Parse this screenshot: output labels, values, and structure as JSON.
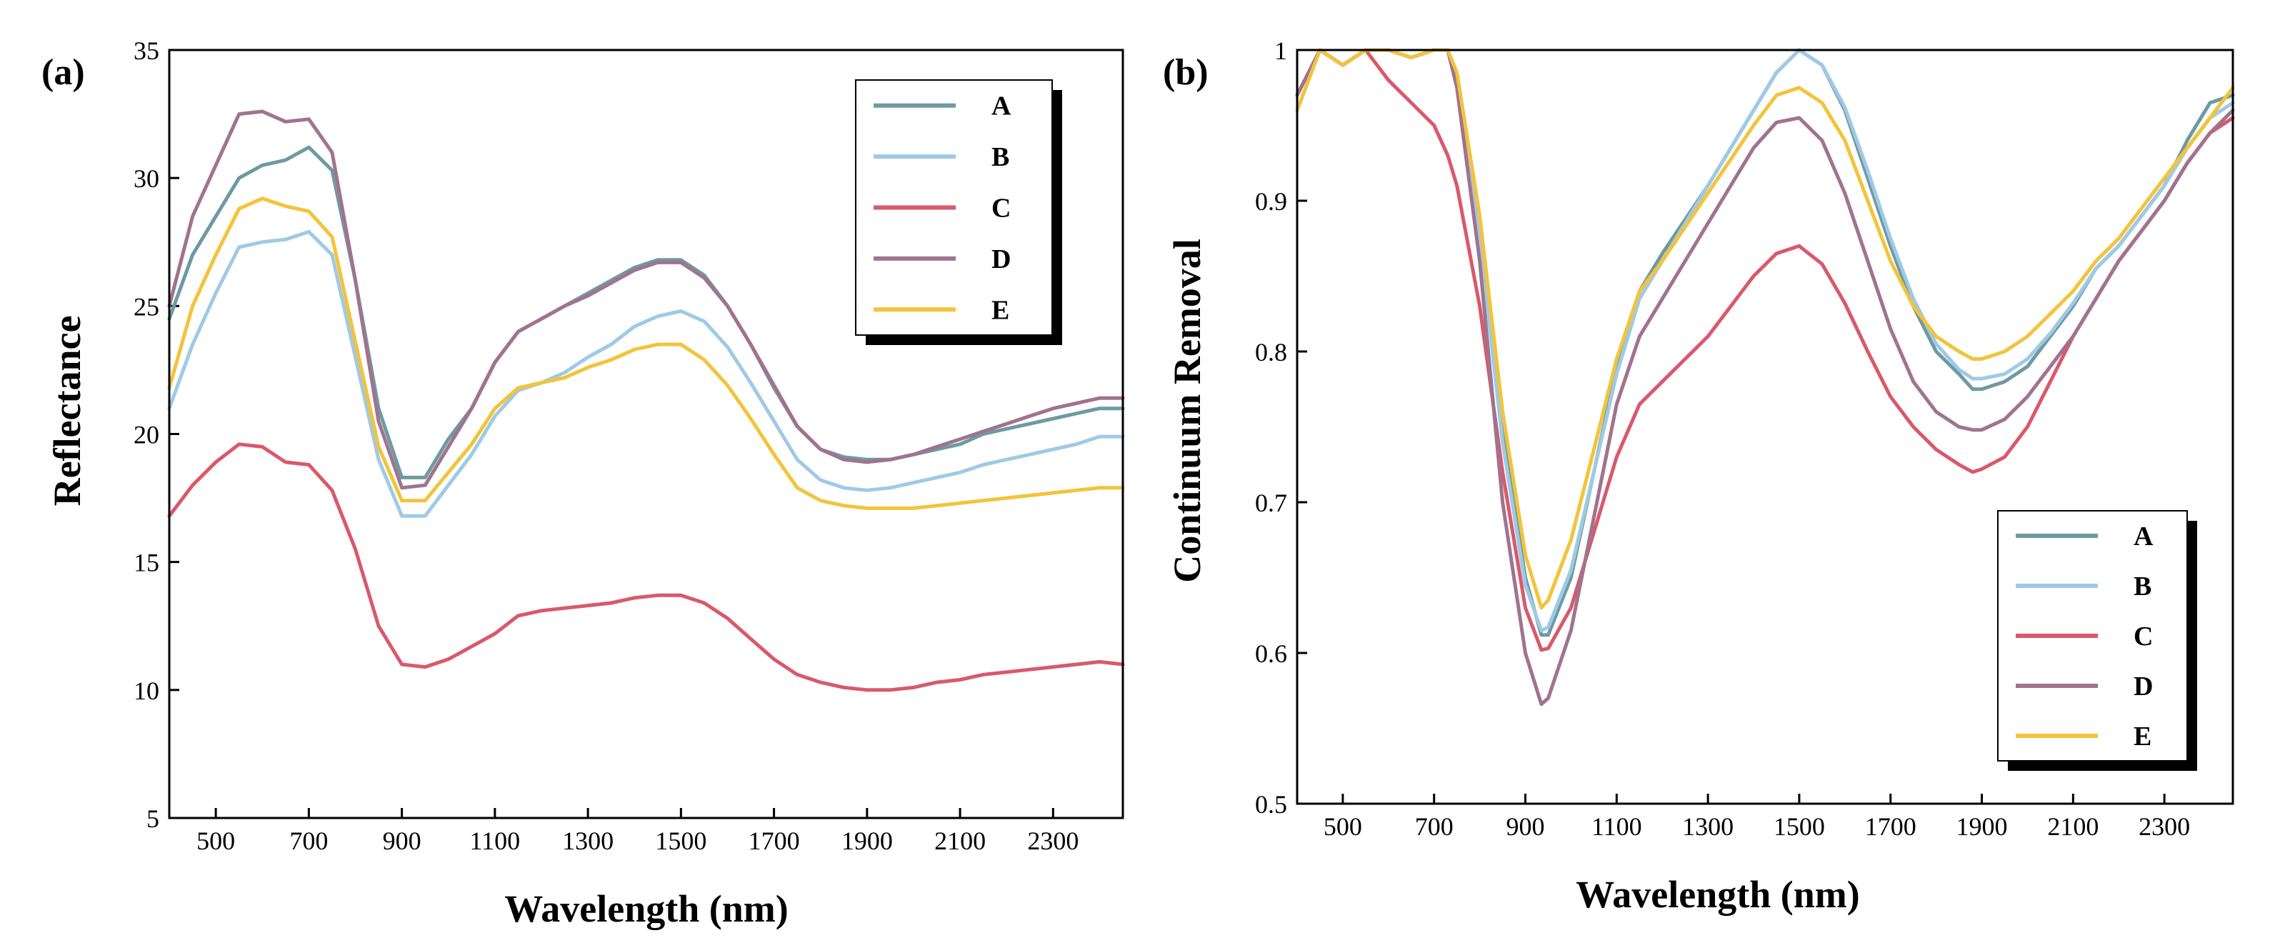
{
  "colors": {
    "A": "#6e9aa2",
    "B": "#9ecae6",
    "C": "#d9596a",
    "D": "#a0738e",
    "E": "#f3c33a"
  },
  "chart_data": [
    {
      "panel_label": "(a)",
      "type": "line",
      "title": "",
      "xlabel": "Wavelength (nm)",
      "ylabel": "Reflectance",
      "xlim": [
        400,
        2450
      ],
      "ylim": [
        5,
        35
      ],
      "xticks": [
        500,
        700,
        900,
        1100,
        1300,
        1500,
        1700,
        1900,
        2100,
        2300
      ],
      "xtick_labels": [
        "500",
        "700",
        "900",
        "1100",
        "1300",
        "1500",
        "1700",
        "1900",
        "2100",
        "2300"
      ],
      "yticks": [
        5,
        10,
        15,
        20,
        25,
        30,
        35
      ],
      "ytick_labels": [
        "5",
        "10",
        "15",
        "20",
        "25",
        "30",
        "35"
      ],
      "grid": false,
      "legend": "top-right",
      "series": [
        {
          "name": "A",
          "x": [
            400,
            450,
            500,
            550,
            600,
            650,
            700,
            750,
            800,
            850,
            900,
            950,
            1000,
            1050,
            1100,
            1150,
            1200,
            1250,
            1300,
            1350,
            1400,
            1450,
            1500,
            1550,
            1600,
            1650,
            1700,
            1750,
            1800,
            1850,
            1900,
            1950,
            2000,
            2050,
            2100,
            2150,
            2200,
            2250,
            2300,
            2350,
            2400,
            2450
          ],
          "values": [
            24.5,
            27.0,
            28.5,
            30.0,
            30.5,
            30.7,
            31.2,
            30.3,
            26.0,
            21.0,
            18.3,
            18.3,
            19.8,
            21.0,
            22.8,
            24.0,
            24.5,
            25.0,
            25.5,
            26.0,
            26.5,
            26.8,
            26.8,
            26.2,
            25.0,
            23.5,
            21.8,
            20.3,
            19.4,
            19.1,
            19.0,
            19.0,
            19.2,
            19.4,
            19.6,
            20.0,
            20.2,
            20.4,
            20.6,
            20.8,
            21.0,
            21.0
          ]
        },
        {
          "name": "B",
          "x": [
            400,
            450,
            500,
            550,
            600,
            650,
            700,
            750,
            800,
            850,
            900,
            950,
            1000,
            1050,
            1100,
            1150,
            1200,
            1250,
            1300,
            1350,
            1400,
            1450,
            1500,
            1550,
            1600,
            1650,
            1700,
            1750,
            1800,
            1850,
            1900,
            1950,
            2000,
            2050,
            2100,
            2150,
            2200,
            2250,
            2300,
            2350,
            2400,
            2450
          ],
          "values": [
            21.0,
            23.5,
            25.5,
            27.3,
            27.5,
            27.6,
            27.9,
            27.0,
            23.0,
            19.0,
            16.8,
            16.8,
            18.0,
            19.2,
            20.7,
            21.7,
            22.0,
            22.4,
            23.0,
            23.5,
            24.2,
            24.6,
            24.8,
            24.4,
            23.4,
            22.0,
            20.5,
            19.0,
            18.2,
            17.9,
            17.8,
            17.9,
            18.1,
            18.3,
            18.5,
            18.8,
            19.0,
            19.2,
            19.4,
            19.6,
            19.9,
            19.9
          ]
        },
        {
          "name": "C",
          "x": [
            400,
            450,
            500,
            550,
            600,
            650,
            700,
            750,
            800,
            850,
            900,
            950,
            1000,
            1050,
            1100,
            1150,
            1200,
            1250,
            1300,
            1350,
            1400,
            1450,
            1500,
            1550,
            1600,
            1650,
            1700,
            1750,
            1800,
            1850,
            1900,
            1950,
            2000,
            2050,
            2100,
            2150,
            2200,
            2250,
            2300,
            2350,
            2400,
            2450
          ],
          "values": [
            16.8,
            18.0,
            18.9,
            19.6,
            19.5,
            18.9,
            18.8,
            17.8,
            15.5,
            12.5,
            11.0,
            10.9,
            11.2,
            11.7,
            12.2,
            12.9,
            13.1,
            13.2,
            13.3,
            13.4,
            13.6,
            13.7,
            13.7,
            13.4,
            12.8,
            12.0,
            11.2,
            10.6,
            10.3,
            10.1,
            10.0,
            10.0,
            10.1,
            10.3,
            10.4,
            10.6,
            10.7,
            10.8,
            10.9,
            11.0,
            11.1,
            11.0
          ]
        },
        {
          "name": "D",
          "x": [
            400,
            450,
            500,
            550,
            600,
            650,
            700,
            750,
            800,
            850,
            900,
            950,
            1000,
            1050,
            1100,
            1150,
            1200,
            1250,
            1300,
            1350,
            1400,
            1450,
            1500,
            1550,
            1600,
            1650,
            1700,
            1750,
            1800,
            1850,
            1900,
            1950,
            2000,
            2050,
            2100,
            2150,
            2200,
            2250,
            2300,
            2350,
            2400,
            2450
          ],
          "values": [
            25.0,
            28.5,
            30.5,
            32.5,
            32.6,
            32.2,
            32.3,
            31.0,
            26.0,
            20.5,
            17.9,
            18.0,
            19.5,
            21.0,
            22.8,
            24.0,
            24.5,
            25.0,
            25.4,
            25.9,
            26.4,
            26.7,
            26.7,
            26.1,
            25.0,
            23.5,
            21.9,
            20.3,
            19.4,
            19.0,
            18.9,
            19.0,
            19.2,
            19.5,
            19.8,
            20.1,
            20.4,
            20.7,
            21.0,
            21.2,
            21.4,
            21.4
          ]
        },
        {
          "name": "E",
          "x": [
            400,
            450,
            500,
            550,
            600,
            650,
            700,
            750,
            800,
            850,
            900,
            950,
            1000,
            1050,
            1100,
            1150,
            1200,
            1250,
            1300,
            1350,
            1400,
            1450,
            1500,
            1550,
            1600,
            1650,
            1700,
            1750,
            1800,
            1850,
            1900,
            1950,
            2000,
            2050,
            2100,
            2150,
            2200,
            2250,
            2300,
            2350,
            2400,
            2450
          ],
          "values": [
            21.8,
            25.0,
            27.0,
            28.8,
            29.2,
            28.9,
            28.7,
            27.7,
            23.6,
            19.5,
            17.4,
            17.4,
            18.5,
            19.6,
            21.0,
            21.8,
            22.0,
            22.2,
            22.6,
            22.9,
            23.3,
            23.5,
            23.5,
            22.9,
            21.9,
            20.6,
            19.2,
            17.9,
            17.4,
            17.2,
            17.1,
            17.1,
            17.1,
            17.2,
            17.3,
            17.4,
            17.5,
            17.6,
            17.7,
            17.8,
            17.9,
            17.9
          ]
        }
      ]
    },
    {
      "panel_label": "(b)",
      "type": "line",
      "title": "",
      "xlabel": "Wavelength (nm)",
      "ylabel": "Continuum Removal",
      "xlim": [
        400,
        2450
      ],
      "ylim": [
        0.5,
        1.0
      ],
      "xticks": [
        500,
        700,
        900,
        1100,
        1300,
        1500,
        1700,
        1900,
        2100,
        2300
      ],
      "xtick_labels": [
        "500",
        "700",
        "900",
        "1100",
        "1300",
        "1500",
        "1700",
        "1900",
        "2100",
        "2300"
      ],
      "yticks": [
        0.5,
        0.6,
        0.7,
        0.8,
        0.9,
        1.0
      ],
      "ytick_labels": [
        "0.5",
        "0.6",
        "0.7",
        "0.8",
        "0.9",
        "1"
      ],
      "grid": false,
      "legend": "bottom-right",
      "series": [
        {
          "name": "A",
          "x": [
            400,
            450,
            500,
            550,
            600,
            650,
            700,
            730,
            750,
            800,
            850,
            900,
            935,
            950,
            1000,
            1050,
            1100,
            1150,
            1200,
            1300,
            1400,
            1450,
            1500,
            1550,
            1600,
            1650,
            1700,
            1750,
            1800,
            1850,
            1880,
            1900,
            1950,
            2000,
            2050,
            2100,
            2150,
            2200,
            2250,
            2300,
            2350,
            2400,
            2450
          ],
          "values": [
            0.97,
            1.0,
            0.99,
            1.0,
            1.0,
            0.995,
            1.0,
            1.0,
            0.98,
            0.88,
            0.75,
            0.65,
            0.612,
            0.612,
            0.65,
            0.72,
            0.79,
            0.84,
            0.865,
            0.91,
            0.96,
            0.985,
            1.0,
            0.99,
            0.96,
            0.915,
            0.87,
            0.83,
            0.8,
            0.785,
            0.775,
            0.775,
            0.78,
            0.79,
            0.81,
            0.83,
            0.855,
            0.87,
            0.89,
            0.91,
            0.94,
            0.965,
            0.97
          ]
        },
        {
          "name": "B",
          "x": [
            400,
            450,
            500,
            550,
            600,
            650,
            700,
            730,
            750,
            800,
            850,
            900,
            935,
            950,
            1000,
            1050,
            1100,
            1150,
            1200,
            1300,
            1400,
            1450,
            1500,
            1550,
            1600,
            1650,
            1700,
            1750,
            1800,
            1850,
            1880,
            1900,
            1950,
            2000,
            2050,
            2100,
            2150,
            2200,
            2250,
            2300,
            2350,
            2400,
            2450
          ],
          "values": [
            0.97,
            1.0,
            0.99,
            1.0,
            1.0,
            0.995,
            1.0,
            1.0,
            0.98,
            0.875,
            0.74,
            0.645,
            0.615,
            0.617,
            0.655,
            0.72,
            0.785,
            0.835,
            0.86,
            0.91,
            0.96,
            0.985,
            1.0,
            0.99,
            0.962,
            0.92,
            0.875,
            0.835,
            0.805,
            0.788,
            0.782,
            0.782,
            0.785,
            0.795,
            0.812,
            0.832,
            0.855,
            0.87,
            0.89,
            0.91,
            0.935,
            0.955,
            0.965
          ]
        },
        {
          "name": "C",
          "x": [
            400,
            450,
            500,
            550,
            600,
            650,
            700,
            730,
            750,
            800,
            850,
            900,
            935,
            950,
            1000,
            1050,
            1100,
            1150,
            1200,
            1300,
            1400,
            1450,
            1500,
            1550,
            1600,
            1650,
            1700,
            1750,
            1800,
            1850,
            1880,
            1900,
            1950,
            2000,
            2050,
            2100,
            2150,
            2200,
            2250,
            2300,
            2350,
            2400,
            2450
          ],
          "values": [
            0.97,
            1.0,
            0.99,
            1.0,
            0.98,
            0.965,
            0.95,
            0.93,
            0.91,
            0.83,
            0.72,
            0.63,
            0.602,
            0.603,
            0.63,
            0.68,
            0.73,
            0.765,
            0.78,
            0.81,
            0.85,
            0.865,
            0.87,
            0.858,
            0.832,
            0.8,
            0.77,
            0.75,
            0.735,
            0.725,
            0.72,
            0.722,
            0.73,
            0.75,
            0.78,
            0.81,
            0.835,
            0.86,
            0.88,
            0.9,
            0.925,
            0.945,
            0.955
          ]
        },
        {
          "name": "D",
          "x": [
            400,
            450,
            500,
            550,
            600,
            650,
            700,
            730,
            750,
            800,
            850,
            900,
            935,
            950,
            1000,
            1050,
            1100,
            1150,
            1200,
            1300,
            1400,
            1450,
            1500,
            1550,
            1600,
            1650,
            1700,
            1750,
            1800,
            1850,
            1880,
            1900,
            1950,
            2000,
            2050,
            2100,
            2150,
            2200,
            2250,
            2300,
            2350,
            2400,
            2450
          ],
          "values": [
            0.97,
            1.0,
            0.99,
            1.0,
            1.0,
            0.995,
            1.0,
            1.0,
            0.975,
            0.86,
            0.7,
            0.6,
            0.566,
            0.57,
            0.615,
            0.69,
            0.765,
            0.81,
            0.835,
            0.885,
            0.935,
            0.952,
            0.955,
            0.94,
            0.905,
            0.86,
            0.815,
            0.78,
            0.76,
            0.75,
            0.748,
            0.748,
            0.755,
            0.77,
            0.79,
            0.81,
            0.835,
            0.86,
            0.88,
            0.9,
            0.925,
            0.945,
            0.96
          ]
        },
        {
          "name": "E",
          "x": [
            400,
            450,
            500,
            550,
            600,
            650,
            700,
            730,
            750,
            800,
            850,
            900,
            935,
            950,
            1000,
            1050,
            1100,
            1150,
            1200,
            1300,
            1400,
            1450,
            1500,
            1550,
            1600,
            1650,
            1700,
            1750,
            1800,
            1850,
            1880,
            1900,
            1950,
            2000,
            2050,
            2100,
            2150,
            2200,
            2250,
            2300,
            2350,
            2400,
            2450
          ],
          "values": [
            0.96,
            1.0,
            0.99,
            1.0,
            1.0,
            0.995,
            1.0,
            1.0,
            0.985,
            0.89,
            0.76,
            0.665,
            0.63,
            0.635,
            0.675,
            0.735,
            0.795,
            0.84,
            0.86,
            0.905,
            0.95,
            0.97,
            0.975,
            0.965,
            0.94,
            0.9,
            0.86,
            0.83,
            0.81,
            0.8,
            0.795,
            0.795,
            0.8,
            0.81,
            0.825,
            0.84,
            0.86,
            0.875,
            0.895,
            0.915,
            0.935,
            0.955,
            0.975
          ]
        }
      ]
    }
  ]
}
